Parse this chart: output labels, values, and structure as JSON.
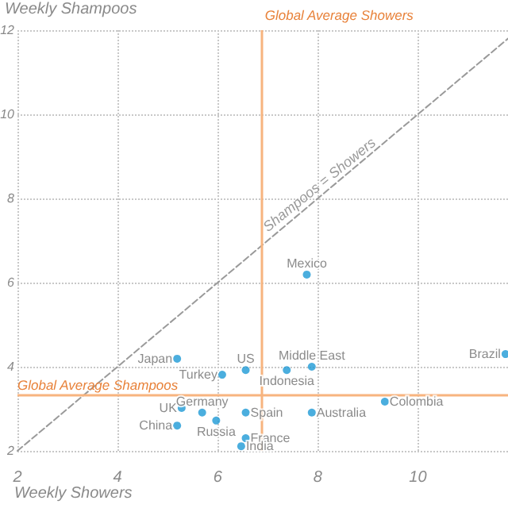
{
  "chart_data": {
    "type": "scatter",
    "xlabel": "Weekly Showers",
    "ylabel": "Weekly Shampoos",
    "xlim": [
      2,
      11.8
    ],
    "ylim": [
      2,
      12
    ],
    "xticks": [
      2,
      4,
      6,
      8,
      10
    ],
    "yticks": [
      2,
      4,
      6,
      8,
      10,
      12
    ],
    "grid": true,
    "series": [
      {
        "color": "#1e9ad6",
        "marker": "circle",
        "x": [
          5.19,
          6.09,
          6.56,
          5.28,
          5.69,
          6.56,
          5.19,
          5.97,
          6.56,
          6.47,
          7.78,
          7.88,
          7.38,
          9.34,
          7.88,
          11.75
        ],
        "values": [
          4.19,
          3.81,
          3.92,
          3.02,
          2.91,
          2.91,
          2.6,
          2.72,
          2.3,
          2.11,
          6.19,
          4.0,
          3.92,
          3.17,
          2.91,
          4.3
        ]
      },
      {
        "type": "line",
        "name": "Shampoos = Showers",
        "color": "#9a9a9a",
        "line_style": "dashed",
        "marker": "none",
        "x": [
          2,
          11.8
        ],
        "values": [
          2,
          11.8
        ]
      }
    ],
    "ref_lines": [
      {
        "axis": "x",
        "value": 6.875,
        "label": "Global Average Showers",
        "color": "#f7b47f"
      },
      {
        "axis": "y",
        "value": 3.32,
        "label": "Global Average Shampoos",
        "color": "#f7b47f"
      }
    ],
    "annotations": [
      {
        "text": "Japan",
        "x": 5.19,
        "y": 4.19
      },
      {
        "text": "Turkey",
        "x": 6.09,
        "y": 3.81
      },
      {
        "text": "US",
        "x": 6.56,
        "y": 3.92
      },
      {
        "text": "UK",
        "x": 5.28,
        "y": 3.02
      },
      {
        "text": "Germany",
        "x": 5.69,
        "y": 2.91
      },
      {
        "text": "Spain",
        "x": 6.56,
        "y": 2.91
      },
      {
        "text": "China",
        "x": 5.19,
        "y": 2.6
      },
      {
        "text": "Russia",
        "x": 5.97,
        "y": 2.72
      },
      {
        "text": "France",
        "x": 6.56,
        "y": 2.3
      },
      {
        "text": "India",
        "x": 6.47,
        "y": 2.11
      },
      {
        "text": "Mexico",
        "x": 7.78,
        "y": 6.19
      },
      {
        "text": "Middle East",
        "x": 7.88,
        "y": 4.0
      },
      {
        "text": "Indonesia",
        "x": 7.38,
        "y": 3.92
      },
      {
        "text": "Colombia",
        "x": 9.34,
        "y": 3.17
      },
      {
        "text": "Australia",
        "x": 7.88,
        "y": 2.91
      },
      {
        "text": "Brazil",
        "x": 11.75,
        "y": 4.3
      }
    ]
  }
}
